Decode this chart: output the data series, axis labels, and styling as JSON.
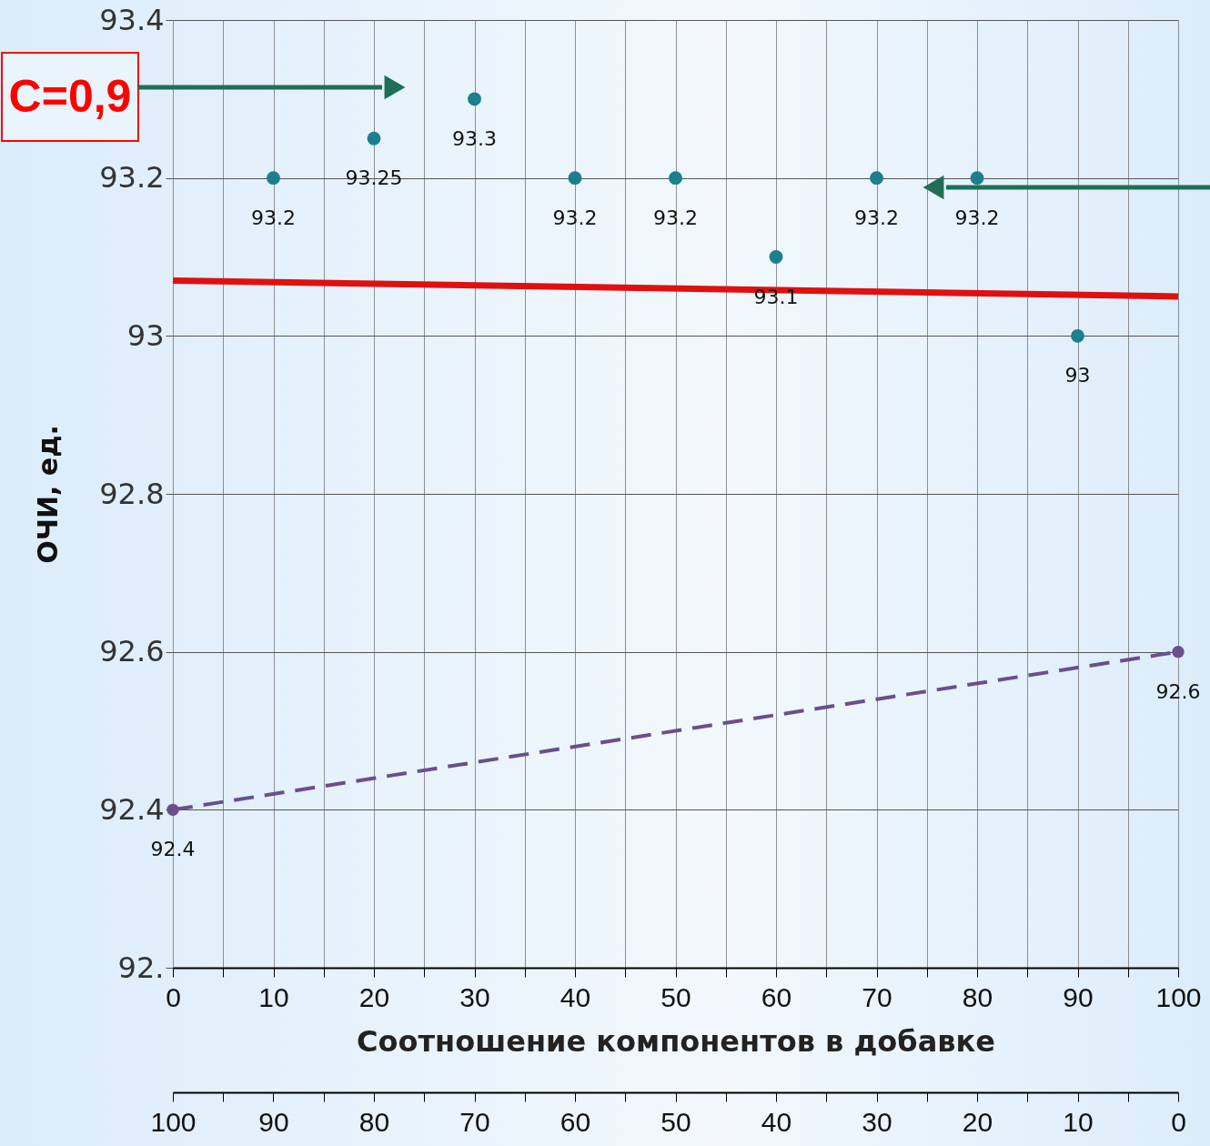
{
  "chart_data": {
    "type": "scatter",
    "ylabel": "ОЧИ, ед.",
    "xlabel": "Соотношение компонентов в добавке",
    "annotations": [
      "C=0,9"
    ],
    "xlim": [
      0,
      100
    ],
    "xticks": [
      0,
      {
        "value": 5,
        "label": null
      },
      10,
      {
        "value": 15,
        "label": null
      },
      20,
      {
        "value": 25,
        "label": null
      },
      30,
      {
        "value": 35,
        "label": null
      },
      40,
      {
        "value": 45,
        "label": null
      },
      50,
      {
        "value": 55,
        "label": null
      },
      60,
      {
        "value": 65,
        "label": null
      },
      70,
      {
        "value": 75,
        "label": null
      },
      80,
      {
        "value": 85,
        "label": null
      },
      90,
      {
        "value": 95,
        "label": null
      },
      100
    ],
    "x2lim": [
      100,
      0
    ],
    "x2ticks": [
      100,
      {
        "value": 95,
        "label": null
      },
      90,
      {
        "value": 85,
        "label": null
      },
      80,
      {
        "value": 75,
        "label": null
      },
      70,
      {
        "value": 65,
        "label": null
      },
      60,
      {
        "value": 55,
        "label": null
      },
      50,
      {
        "value": 45,
        "label": null
      },
      40,
      {
        "value": 35,
        "label": null
      },
      30,
      {
        "value": 25,
        "label": null
      },
      20,
      {
        "value": 15,
        "label": null
      },
      10,
      {
        "value": 5,
        "label": null
      },
      0
    ],
    "ylim": [
      92.2,
      93.4
    ],
    "yticks": [
      {
        "value": 92.2,
        "label": "92."
      },
      92.4,
      92.6,
      92.8,
      93,
      93.2,
      93.4
    ],
    "grid": true,
    "marker": "circle",
    "series": [
      {
        "color": "#1b7f8e",
        "x": [
          10,
          20,
          30,
          40,
          50,
          60,
          70,
          80,
          90
        ],
        "values": [
          93.2,
          93.25,
          93.3,
          93.2,
          93.2,
          93.1,
          93.2,
          93.2,
          93.0
        ],
        "value_labels": [
          "93.2",
          "93.25",
          "93.3",
          "93.2",
          "93.2",
          "93.1",
          "93.2",
          "93.2",
          "93"
        ]
      },
      {
        "type": "line",
        "line_style": "dashed",
        "marker": "circle",
        "color": "#6a4f8c",
        "x": [
          0,
          100
        ],
        "values": [
          92.4,
          92.6
        ],
        "value_labels": [
          "92.4",
          "92.6"
        ]
      },
      {
        "type": "line",
        "line_style": "solid",
        "marker": "none",
        "color": "#e01010",
        "x": [
          0,
          100
        ],
        "values": [
          93.07,
          93.05
        ]
      }
    ]
  }
}
